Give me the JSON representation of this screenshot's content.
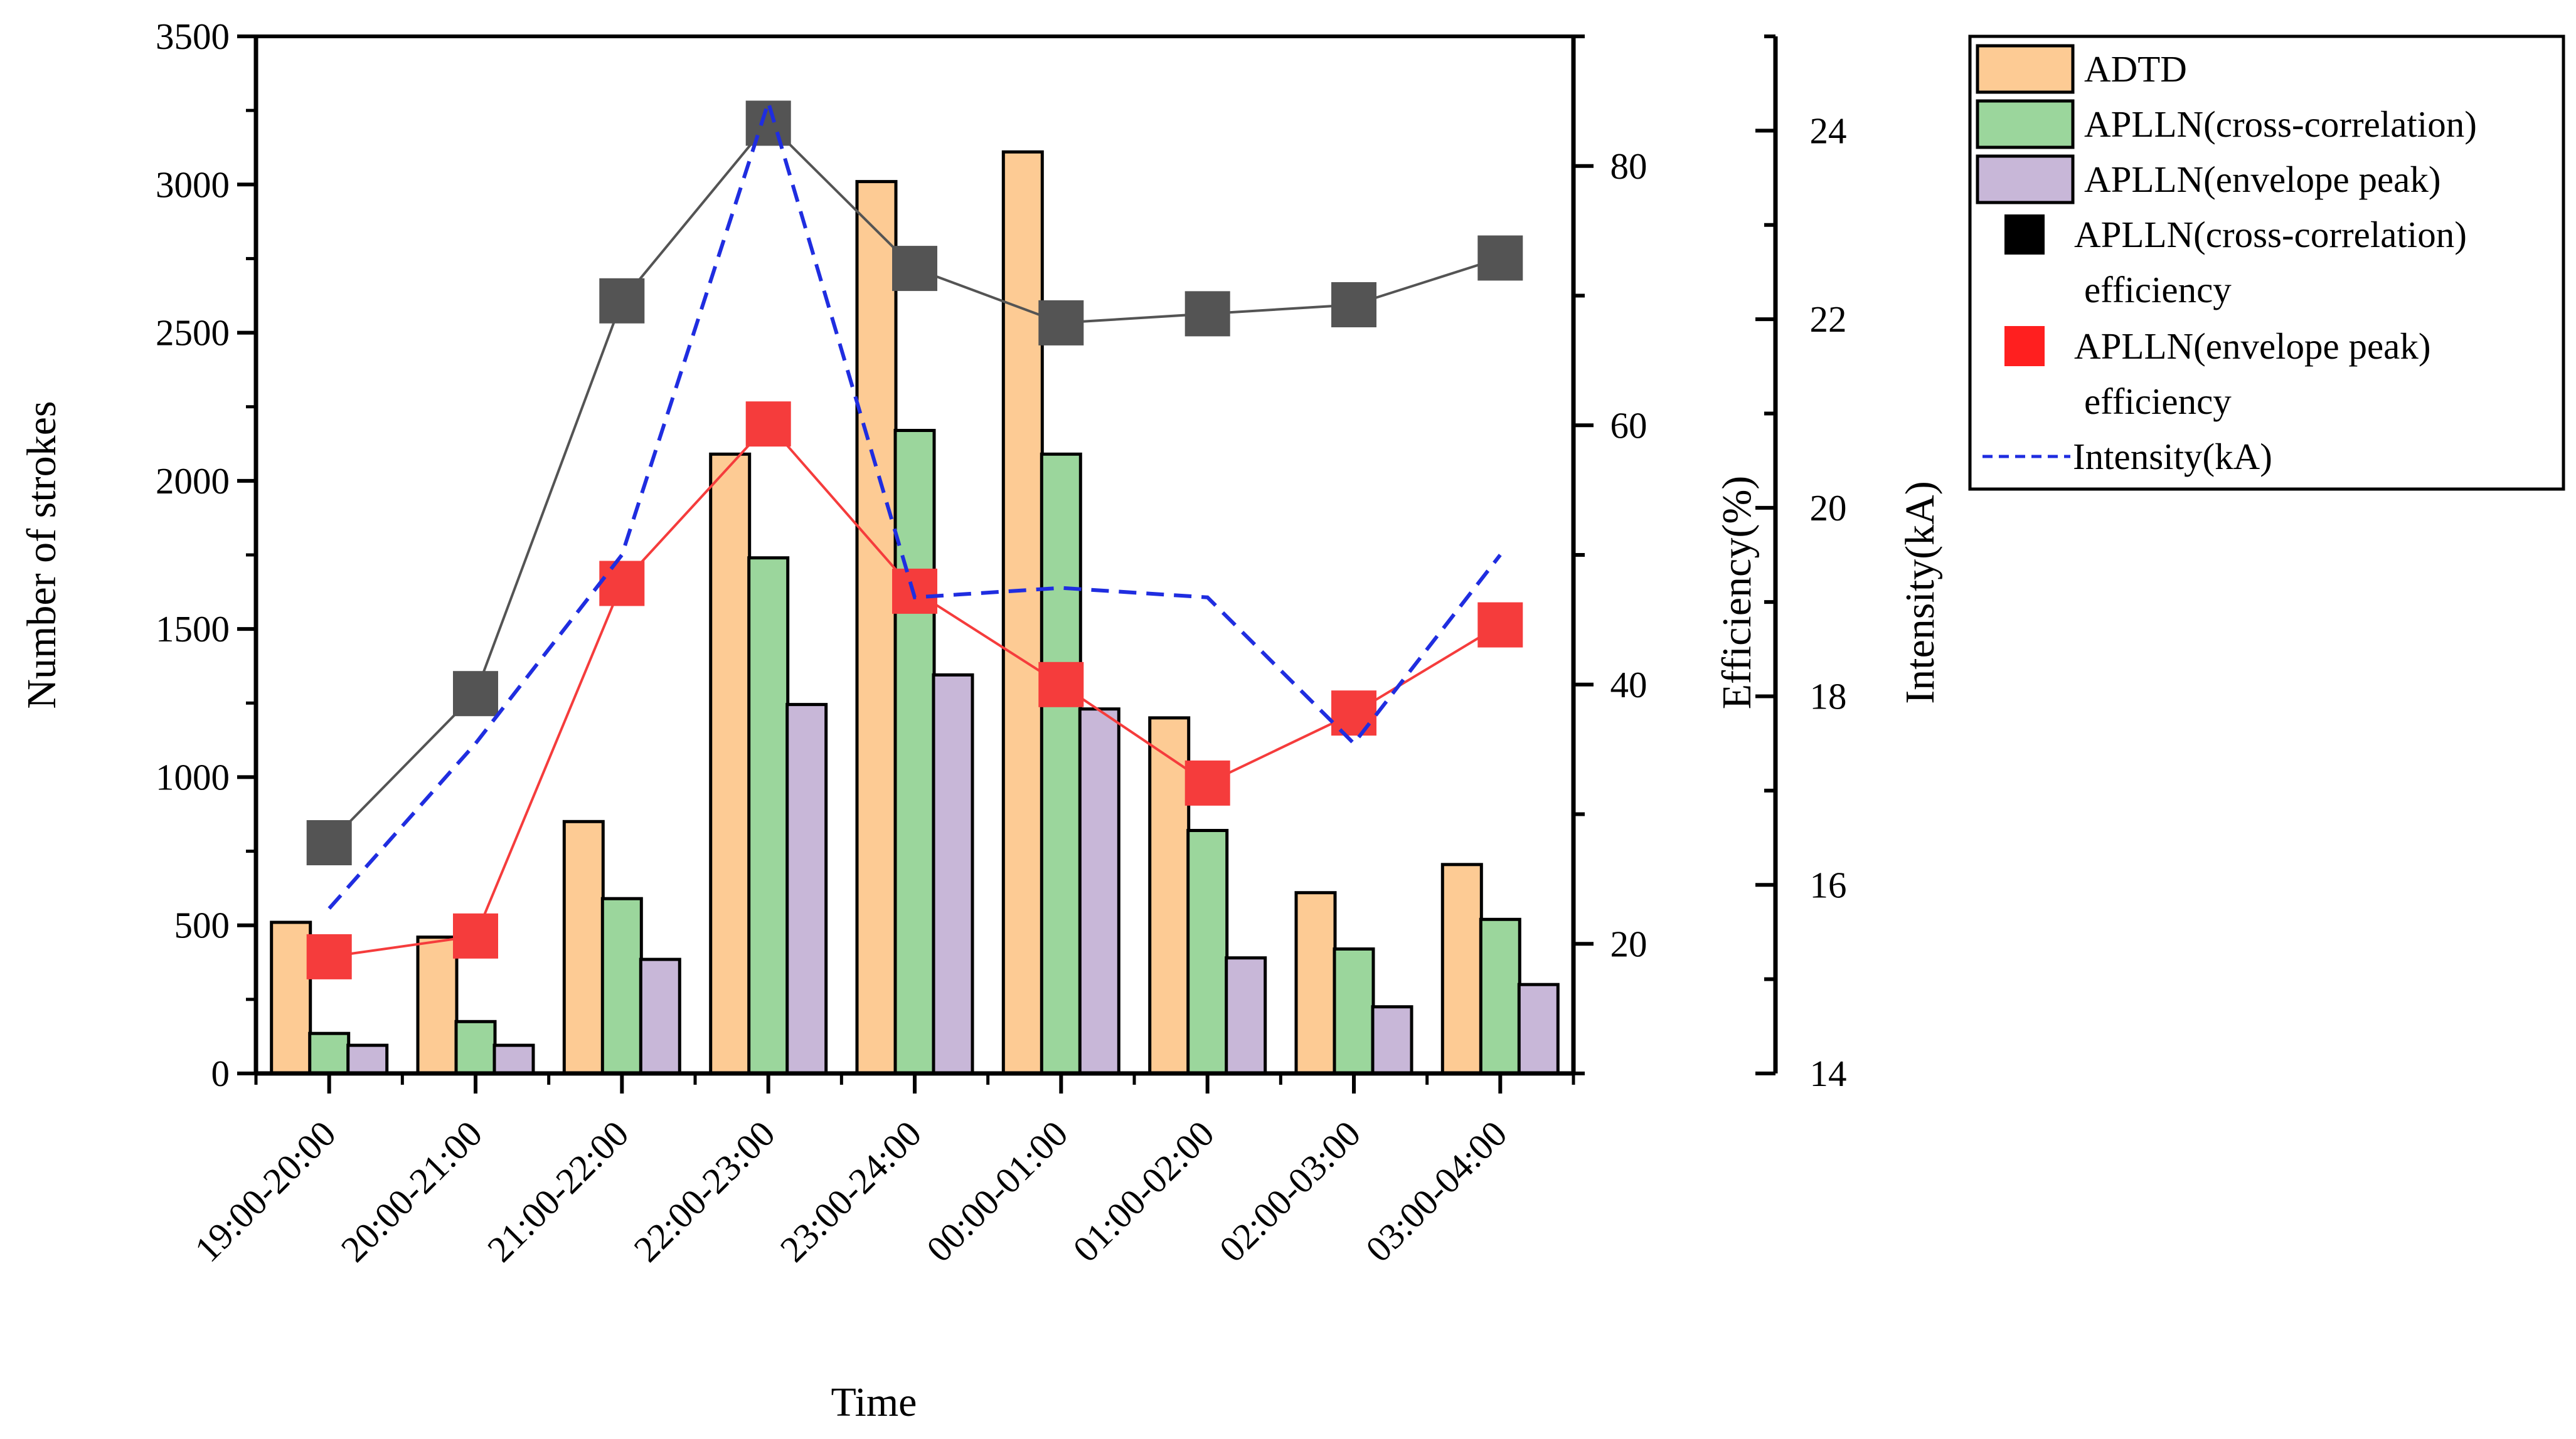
{
  "chart_data": {
    "type": "bar",
    "categories": [
      "19:00-20:00",
      "20:00-21:00",
      "21:00-22:00",
      "22:00-23:00",
      "23:00-24:00",
      "00:00-01:00",
      "01:00-02:00",
      "02:00-03:00",
      "03:00-04:00"
    ],
    "xlabel": "Time",
    "ylabel": "Number of strokes",
    "ylabel2": "Efficiency(%)",
    "ylabel3": "Intensity(kA)",
    "ylim": [
      0,
      3500
    ],
    "ylim2": [
      10,
      90
    ],
    "ylim3": [
      14,
      25
    ],
    "yticks": [
      0,
      500,
      1000,
      1500,
      2000,
      2500,
      3000,
      3500
    ],
    "yticks2": [
      20,
      40,
      60,
      80
    ],
    "yticks3": [
      14,
      16,
      18,
      20,
      22,
      24
    ],
    "bar_series": [
      {
        "name": "ADTD",
        "color": "#FDCB94",
        "values": [
          510,
          460,
          850,
          2090,
          3010,
          3110,
          1200,
          610,
          705
        ]
      },
      {
        "name": "APLLN(cross-correlation)",
        "color": "#9BD69C",
        "values": [
          135,
          175,
          590,
          1740,
          2170,
          2090,
          820,
          420,
          520
        ]
      },
      {
        "name": "APLLN(envelope peak)",
        "color": "#C8B7D8",
        "values": [
          95,
          95,
          385,
          1245,
          1345,
          1230,
          390,
          225,
          300
        ]
      }
    ],
    "efficiency_series": [
      {
        "name": "APLLN(cross-correlation) efficiency",
        "legend_line1": "APLLN(cross-correlation)",
        "legend_line2": "efficiency",
        "marker_color": "#545454",
        "legend_color": "#000000",
        "line_color": "#545454",
        "values": [
          27.8,
          39.3,
          69.6,
          83.3,
          72.1,
          67.9,
          68.6,
          69.3,
          72.9
        ]
      },
      {
        "name": "APLLN(envelope peak) efficiency",
        "legend_line1": "APLLN(envelope peak)",
        "legend_line2": "efficiency",
        "marker_color": "#F53C3C",
        "legend_color": "#FF1F1F",
        "line_color": "#F53C3C",
        "values": [
          19.0,
          20.6,
          47.8,
          60.1,
          47.2,
          40.0,
          32.4,
          37.8,
          44.6
        ]
      }
    ],
    "intensity_series": {
      "name": "Intensity(kA)",
      "color": "#1F2DE0",
      "values": [
        15.75,
        17.5,
        19.5,
        24.3,
        19.05,
        19.15,
        19.05,
        17.5,
        19.5
      ]
    },
    "legend_position": "right"
  }
}
